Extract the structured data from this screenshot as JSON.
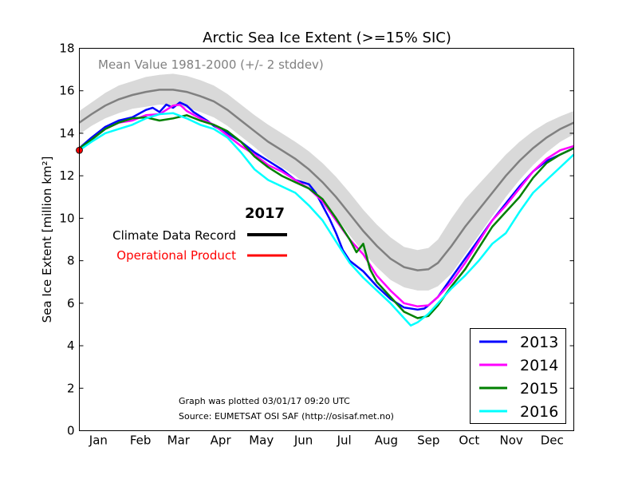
{
  "chart_data": {
    "type": "line",
    "title": "Arctic Sea Ice Extent (>=15% SIC)",
    "xlabel": "",
    "ylabel": "Sea Ice Extent [million km²]",
    "xlim": [
      1,
      365
    ],
    "ylim": [
      0,
      18
    ],
    "yticks": [
      0,
      2,
      4,
      6,
      8,
      10,
      12,
      14,
      16,
      18
    ],
    "months": [
      {
        "label": "Jan",
        "day": 15
      },
      {
        "label": "Feb",
        "day": 46
      },
      {
        "label": "Mar",
        "day": 74
      },
      {
        "label": "Apr",
        "day": 105
      },
      {
        "label": "May",
        "day": 135
      },
      {
        "label": "Jun",
        "day": 166
      },
      {
        "label": "Jul",
        "day": 196
      },
      {
        "label": "Aug",
        "day": 227
      },
      {
        "label": "Sep",
        "day": 258
      },
      {
        "label": "Oct",
        "day": 288
      },
      {
        "label": "Nov",
        "day": 319
      },
      {
        "label": "Dec",
        "day": 349
      }
    ],
    "mean": {
      "label": "Mean Value 1981-2000 (+/- 2 stddev)",
      "color": "#808080",
      "band_color": "#d9d9d9",
      "x": [
        1,
        10,
        20,
        30,
        40,
        50,
        60,
        70,
        80,
        90,
        100,
        110,
        120,
        130,
        140,
        150,
        160,
        170,
        180,
        190,
        200,
        210,
        220,
        230,
        240,
        250,
        258,
        265,
        275,
        285,
        295,
        305,
        315,
        325,
        335,
        345,
        355,
        365
      ],
      "values": [
        14.5,
        14.9,
        15.3,
        15.6,
        15.8,
        15.95,
        16.05,
        16.05,
        15.95,
        15.75,
        15.5,
        15.1,
        14.6,
        14.1,
        13.6,
        13.2,
        12.8,
        12.3,
        11.7,
        11.0,
        10.2,
        9.4,
        8.7,
        8.1,
        7.7,
        7.55,
        7.6,
        7.9,
        8.7,
        9.6,
        10.4,
        11.2,
        12.0,
        12.7,
        13.3,
        13.8,
        14.2,
        14.5
      ],
      "spread": [
        0.55,
        0.55,
        0.6,
        0.65,
        0.65,
        0.7,
        0.7,
        0.75,
        0.75,
        0.75,
        0.75,
        0.75,
        0.75,
        0.75,
        0.8,
        0.8,
        0.8,
        0.85,
        0.9,
        0.95,
        1.0,
        1.0,
        1.0,
        1.0,
        0.95,
        0.95,
        1.0,
        1.1,
        1.3,
        1.3,
        1.2,
        1.1,
        1.0,
        0.9,
        0.8,
        0.7,
        0.6,
        0.55
      ]
    },
    "series": [
      {
        "name": "2013",
        "color": "#0000ff",
        "x": [
          1,
          10,
          20,
          30,
          40,
          50,
          55,
          60,
          65,
          70,
          75,
          80,
          85,
          90,
          95,
          100,
          110,
          120,
          130,
          140,
          150,
          160,
          170,
          175,
          180,
          185,
          190,
          195,
          200,
          210,
          220,
          230,
          240,
          250,
          255,
          258,
          265,
          275,
          285,
          295,
          305,
          315,
          325,
          335,
          345,
          355,
          365
        ],
        "values": [
          13.3,
          13.8,
          14.3,
          14.6,
          14.75,
          15.1,
          15.2,
          15.0,
          15.35,
          15.2,
          15.45,
          15.3,
          15.0,
          14.8,
          14.6,
          14.35,
          14.0,
          13.6,
          13.1,
          12.7,
          12.3,
          11.8,
          11.6,
          11.2,
          10.6,
          10.0,
          9.3,
          8.5,
          8.0,
          7.5,
          6.8,
          6.2,
          5.8,
          5.7,
          5.75,
          5.9,
          6.3,
          7.2,
          8.1,
          9.0,
          9.9,
          10.7,
          11.5,
          12.2,
          12.7,
          13.0,
          13.3
        ]
      },
      {
        "name": "2014",
        "color": "#ff00ff",
        "x": [
          1,
          10,
          20,
          30,
          40,
          50,
          60,
          65,
          70,
          75,
          80,
          90,
          100,
          110,
          120,
          130,
          140,
          150,
          160,
          170,
          180,
          190,
          200,
          210,
          220,
          230,
          240,
          250,
          258,
          265,
          275,
          285,
          295,
          305,
          315,
          325,
          335,
          345,
          355,
          365
        ],
        "values": [
          13.2,
          13.7,
          14.2,
          14.5,
          14.6,
          14.85,
          14.9,
          15.1,
          15.3,
          15.35,
          15.05,
          14.7,
          14.4,
          13.9,
          13.4,
          13.0,
          12.5,
          12.2,
          11.8,
          11.4,
          10.8,
          9.9,
          9.0,
          8.3,
          7.3,
          6.6,
          6.0,
          5.85,
          5.9,
          6.3,
          7.0,
          7.9,
          8.9,
          9.9,
          10.6,
          11.4,
          12.2,
          12.8,
          13.2,
          13.4
        ]
      },
      {
        "name": "2015",
        "color": "#008000",
        "x": [
          1,
          10,
          20,
          30,
          40,
          50,
          60,
          70,
          80,
          90,
          100,
          110,
          120,
          130,
          140,
          150,
          160,
          170,
          180,
          190,
          200,
          205,
          210,
          215,
          220,
          230,
          240,
          250,
          258,
          265,
          275,
          285,
          295,
          305,
          315,
          325,
          335,
          345,
          355,
          365
        ],
        "values": [
          13.3,
          13.7,
          14.2,
          14.5,
          14.7,
          14.75,
          14.6,
          14.7,
          14.85,
          14.6,
          14.4,
          14.1,
          13.6,
          12.9,
          12.4,
          12.0,
          11.7,
          11.4,
          10.9,
          10.0,
          9.0,
          8.4,
          8.8,
          7.6,
          7.0,
          6.3,
          5.6,
          5.3,
          5.4,
          5.9,
          6.8,
          7.6,
          8.6,
          9.6,
          10.3,
          11.0,
          11.9,
          12.6,
          13.0,
          13.3
        ]
      },
      {
        "name": "2016",
        "color": "#00ffff",
        "x": [
          1,
          10,
          20,
          30,
          40,
          50,
          60,
          70,
          80,
          90,
          100,
          110,
          120,
          130,
          140,
          150,
          160,
          170,
          180,
          190,
          200,
          210,
          220,
          230,
          240,
          245,
          250,
          258,
          265,
          275,
          285,
          295,
          305,
          315,
          325,
          335,
          345,
          355,
          365
        ],
        "values": [
          13.2,
          13.6,
          14.0,
          14.2,
          14.4,
          14.7,
          14.9,
          14.95,
          14.7,
          14.4,
          14.2,
          13.8,
          13.1,
          12.3,
          11.8,
          11.5,
          11.2,
          10.6,
          9.9,
          8.9,
          7.9,
          7.2,
          6.6,
          6.0,
          5.3,
          4.95,
          5.1,
          5.5,
          6.0,
          6.7,
          7.3,
          8.0,
          8.8,
          9.3,
          10.3,
          11.2,
          11.8,
          12.4,
          13.0
        ]
      }
    ],
    "record_2017": {
      "color": "#ff0000",
      "x": [
        1,
        2,
        3
      ],
      "values": [
        13.2,
        13.25,
        13.3
      ]
    },
    "legend": {
      "placement": "lower-right",
      "entries": [
        "2013",
        "2014",
        "2015",
        "2016"
      ]
    },
    "inline_legend": {
      "title": "2017",
      "items": [
        {
          "label": "Climate Data Record",
          "color": "#000000"
        },
        {
          "label": "Operational Product",
          "color": "#ff0000"
        }
      ]
    },
    "annotations": [
      "Graph was plotted 03/01/17 09:20 UTC",
      "Source: EUMETSAT OSI SAF (http://osisaf.met.no)"
    ],
    "grid": false
  }
}
